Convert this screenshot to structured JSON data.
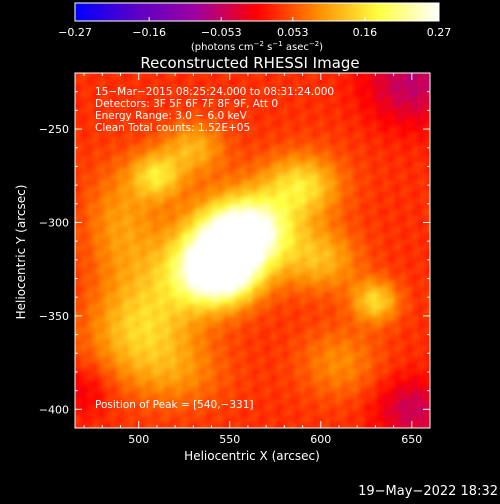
{
  "chart_data": {
    "type": "heatmap",
    "title": "Reconstructed RHESSI Image",
    "xlabel": "Heliocentric X (arcsec)",
    "ylabel": "Heliocentric Y (arcsec)",
    "xlim": [
      465,
      660
    ],
    "ylim": [
      -410,
      -220
    ],
    "xticks": [
      500,
      550,
      600,
      650
    ],
    "yticks": [
      -250,
      -300,
      -350,
      -400
    ],
    "xtick_labels": [
      "500",
      "550",
      "600",
      "650"
    ],
    "ytick_labels": [
      "−250",
      "−300",
      "−350",
      "−400"
    ],
    "colorbar": {
      "range": [
        -0.27,
        0.27
      ],
      "ticks": [
        -0.27,
        -0.16,
        -0.053,
        0.053,
        0.16,
        0.27
      ],
      "tick_labels": [
        "−0.27",
        "−0.16",
        "−0.053",
        "0.053",
        "0.16",
        "0.27"
      ],
      "unit_main": "(photons cm",
      "unit_sup1": "−2",
      "unit_mid": " s",
      "unit_sup2": "−1",
      "unit_mid2": " asec",
      "unit_sup3": "−2",
      "unit_end": ")",
      "colormap": [
        "#0000ff",
        "#5a00c8",
        "#a000a0",
        "#ff0000",
        "#ff8c00",
        "#ffff40",
        "#ffffff"
      ]
    },
    "annotations": [
      "15−Mar−2015 08:25:24.000 to 08:31:24.000",
      "Detectors: 3F 5F 6F 7F 8F 9F, Att 0",
      "Energy Range: 3.0 − 6.0 keV",
      "Clean     Total counts: 1.52E+05"
    ],
    "peak_label": "Position of Peak = [540,−331]",
    "peak": [
      540,
      -331
    ],
    "sources": [
      {
        "x": 545,
        "y": -325,
        "sx": 14,
        "sy": 12,
        "amp": 0.27
      },
      {
        "x": 558,
        "y": -305,
        "sx": 16,
        "sy": 12,
        "amp": 0.2
      },
      {
        "x": 540,
        "y": -318,
        "sx": 40,
        "sy": 18,
        "rot": -35,
        "amp": 0.13
      },
      {
        "x": 510,
        "y": -275,
        "sx": 10,
        "sy": 9,
        "amp": 0.12
      },
      {
        "x": 530,
        "y": -260,
        "sx": 12,
        "sy": 10,
        "amp": 0.09
      },
      {
        "x": 590,
        "y": -280,
        "sx": 14,
        "sy": 11,
        "amp": 0.1
      },
      {
        "x": 600,
        "y": -320,
        "sx": 15,
        "sy": 12,
        "amp": 0.09
      },
      {
        "x": 630,
        "y": -342,
        "sx": 9,
        "sy": 8,
        "amp": 0.12
      },
      {
        "x": 500,
        "y": -360,
        "sx": 18,
        "sy": 16,
        "amp": 0.07
      },
      {
        "x": 520,
        "y": -380,
        "sx": 20,
        "sy": 14,
        "amp": 0.06
      },
      {
        "x": 610,
        "y": -375,
        "sx": 16,
        "sy": 14,
        "amp": 0.06
      },
      {
        "x": 490,
        "y": -300,
        "sx": 14,
        "sy": 22,
        "amp": 0.07
      }
    ],
    "negative_regions": [
      {
        "x": 650,
        "y": -225,
        "sx": 18,
        "sy": 16,
        "amp": -0.09
      },
      {
        "x": 650,
        "y": -400,
        "sx": 14,
        "sy": 12,
        "amp": -0.08
      },
      {
        "x": 470,
        "y": -390,
        "sx": 10,
        "sy": 10,
        "amp": -0.04
      }
    ],
    "background": 0.03,
    "grid": false
  },
  "footer": {
    "timestamp": "19−May−2022 18:32"
  }
}
